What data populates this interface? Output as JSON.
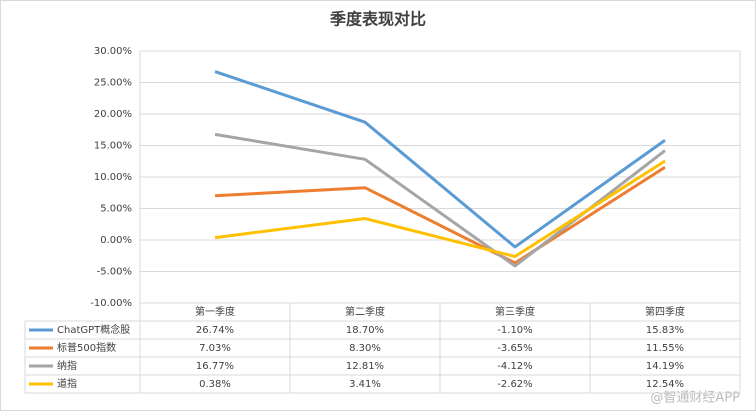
{
  "chart_data": {
    "type": "line",
    "title": "季度表现对比",
    "categories": [
      "第一季度",
      "第二季度",
      "第三季度",
      "第四季度"
    ],
    "series": [
      {
        "name": "ChatGPT概念股",
        "color": "#5b9bd5",
        "values": [
          26.74,
          18.7,
          -1.1,
          15.83
        ],
        "value_labels": [
          "26.74%",
          "18.70%",
          "-1.10%",
          "15.83%"
        ]
      },
      {
        "name": "标普500指数",
        "color": "#ed7d31",
        "values": [
          7.03,
          8.3,
          -3.65,
          11.55
        ],
        "value_labels": [
          "7.03%",
          "8.30%",
          "-3.65%",
          "11.55%"
        ]
      },
      {
        "name": "纳指",
        "color": "#a5a5a5",
        "values": [
          16.77,
          12.81,
          -4.12,
          14.19
        ],
        "value_labels": [
          "16.77%",
          "12.81%",
          "-4.12%",
          "14.19%"
        ]
      },
      {
        "name": "道指",
        "color": "#ffc000",
        "values": [
          0.38,
          3.41,
          -2.62,
          12.54
        ],
        "value_labels": [
          "0.38%",
          "3.41%",
          "-2.62%",
          "12.54%"
        ]
      }
    ],
    "ylim": [
      -10,
      30
    ],
    "yticks": [
      {
        "value": -10,
        "label": "-10.00%"
      },
      {
        "value": -5,
        "label": "-5.00%"
      },
      {
        "value": 0,
        "label": "0.00%"
      },
      {
        "value": 5,
        "label": "5.00%"
      },
      {
        "value": 10,
        "label": "10.00%"
      },
      {
        "value": 15,
        "label": "15.00%"
      },
      {
        "value": 20,
        "label": "20.00%"
      },
      {
        "value": 25,
        "label": "25.00%"
      },
      {
        "value": 30,
        "label": "30.00%"
      }
    ],
    "grid": true,
    "watermark": "@智通财经APP"
  }
}
